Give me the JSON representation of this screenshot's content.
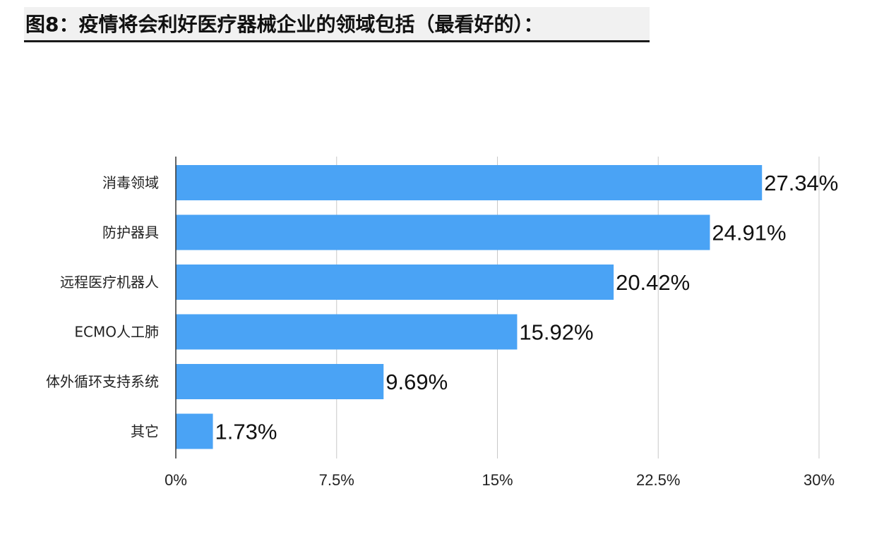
{
  "chart_data": {
    "type": "bar",
    "orientation": "horizontal",
    "title": "图8：疫情将会利好医疗器械企业的领域包括（最看好的）：",
    "categories": [
      "消毒领域",
      "防护器具",
      "远程医疗机器人",
      "ECMO人工肺",
      "体外循环支持系统",
      "其它"
    ],
    "values": [
      27.34,
      24.91,
      20.42,
      15.92,
      9.69,
      1.73
    ],
    "value_labels": [
      "27.34%",
      "24.91%",
      "20.42%",
      "15.92%",
      "9.69%",
      "1.73%"
    ],
    "xlim": [
      0,
      30
    ],
    "x_ticks": [
      0,
      7.5,
      15,
      22.5,
      30
    ],
    "x_tick_labels": [
      "0%",
      "7.5%",
      "15%",
      "22.5%",
      "30%"
    ],
    "grid": "vertical",
    "bar_color": "#4aa3f5",
    "legend": "none"
  }
}
